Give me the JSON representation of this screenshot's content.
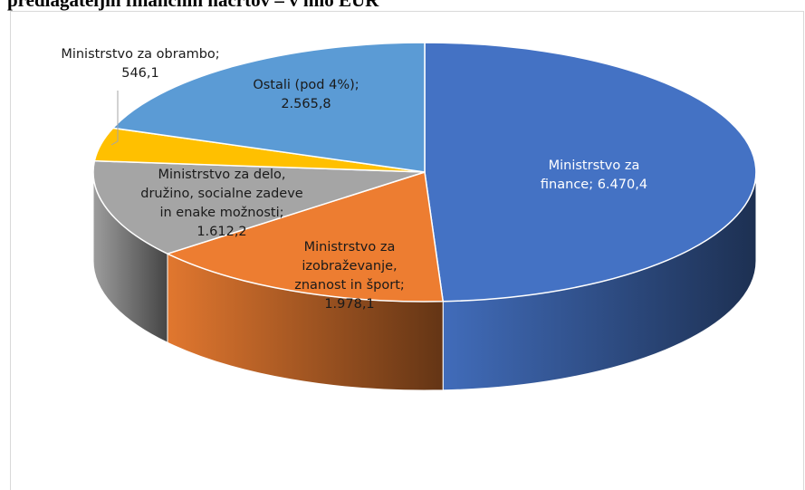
{
  "chart_data": {
    "type": "pie",
    "title": "predlagateljih finančnih načrtov – v mio EUR",
    "unit": "mio EUR",
    "slices": [
      {
        "label": "Ministrstvo za finance",
        "value": 6470.4,
        "value_text": "6.470,4",
        "color": "#4472C4",
        "label_lines": [
          "Ministrstvo za",
          "finance; 6.470,4"
        ],
        "text_color": "#ffffff"
      },
      {
        "label": "Ministrstvo za izobraževanje, znanost in šport",
        "value": 1978.1,
        "value_text": "1.978,1",
        "color": "#ED7D31",
        "label_lines": [
          "Ministrstvo za",
          "izobraževanje,",
          "znanost in šport;",
          "1.978,1"
        ],
        "text_color": "#1a1a1a"
      },
      {
        "label": "Ministrstvo za delo, družino, socialne zadeve in enake možnosti",
        "value": 1612.2,
        "value_text": "1.612,2",
        "color": "#A5A5A5",
        "label_lines": [
          "Ministrstvo za delo,",
          "družino, socialne zadeve",
          "in enake možnosti;",
          "1.612,2"
        ],
        "text_color": "#1a1a1a"
      },
      {
        "label": "Ministrstvo za obrambo",
        "value": 546.1,
        "value_text": "546,1",
        "color": "#FFC000",
        "label_lines": [
          "Ministrstvo za obrambo;",
          "546,1"
        ],
        "text_color": "#1a1a1a"
      },
      {
        "label": "Ostali (pod 4%)",
        "value": 2565.8,
        "value_text": "2.565,8",
        "color": "#5B9BD5",
        "label_lines": [
          "Ostali (pod 4%);",
          "2.565,8"
        ],
        "text_color": "#1a1a1a"
      }
    ],
    "style": "3d-pie",
    "legend": "none"
  }
}
